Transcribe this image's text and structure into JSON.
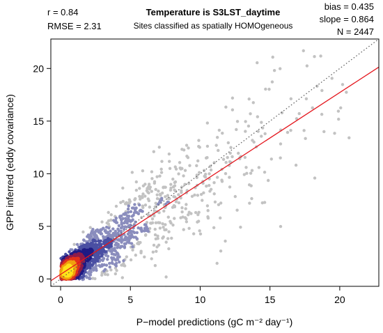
{
  "chart_data": {
    "type": "scatter",
    "title": "Temperature is S3LST_daytime",
    "subtitle": "Sites classified as spatially HOMOgeneous",
    "xlabel": "P−model predictions (gC m⁻² day⁻¹)",
    "ylabel": "GPP inferred (eddy covariance)",
    "xlim": [
      -0.7,
      22.8
    ],
    "ylim": [
      -0.7,
      22.8
    ],
    "x_ticks": [
      0,
      5,
      10,
      15,
      20
    ],
    "y_ticks": [
      0,
      5,
      10,
      15,
      20
    ],
    "x_tick_labels": [
      "0",
      "5",
      "10",
      "15",
      "20"
    ],
    "y_tick_labels": [
      "0",
      "5",
      "10",
      "15",
      "20"
    ],
    "grid": false,
    "stats_left": {
      "r": "r = 0.84",
      "rmse": "RMSE = 2.31"
    },
    "stats_right": {
      "bias": "bias = 0.435",
      "slope": "slope = 0.864",
      "n": "N = 2447"
    },
    "n_points": 2447,
    "fit_line": {
      "intercept": 0.435,
      "slope": 0.864,
      "color": "#e4161d"
    },
    "one_to_one_line": {
      "slope": 1,
      "intercept": 0,
      "color": "#555555"
    },
    "density_colors": [
      "#c2c2c2",
      "#8a8dbd",
      "#4a4fa3",
      "#1e1a84",
      "#8e1c4b",
      "#e2321b",
      "#f0a00f",
      "#ffe21a"
    ]
  }
}
